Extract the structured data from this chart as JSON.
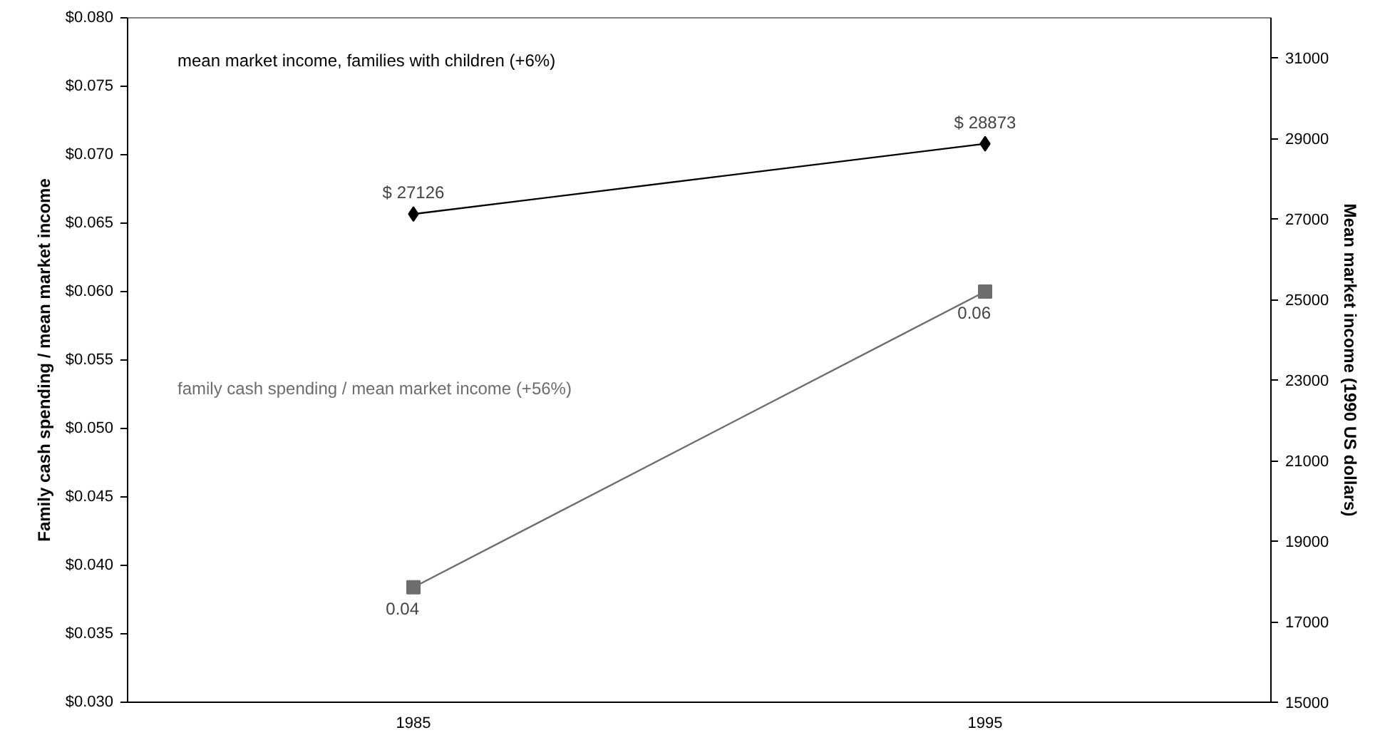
{
  "chart_data": {
    "type": "line",
    "categories": [
      "1985",
      "1995"
    ],
    "ylabel": "Family cash spending / mean market income",
    "y2label": "Mean market income (1990 US dollars)",
    "ylim": [
      0.03,
      0.08
    ],
    "yticks": [
      {
        "value": 0.03,
        "label": "$0.030"
      },
      {
        "value": 0.035,
        "label": "$0.035"
      },
      {
        "value": 0.04,
        "label": "$0.040"
      },
      {
        "value": 0.045,
        "label": "$0.045"
      },
      {
        "value": 0.05,
        "label": "$0.050"
      },
      {
        "value": 0.055,
        "label": "$0.055"
      },
      {
        "value": 0.06,
        "label": "$0.060"
      },
      {
        "value": 0.065,
        "label": "$0.065"
      },
      {
        "value": 0.07,
        "label": "$0.070"
      },
      {
        "value": 0.075,
        "label": "$0.075"
      },
      {
        "value": 0.08,
        "label": "$0.080"
      }
    ],
    "y2lim": [
      15000,
      32000
    ],
    "y2ticks": [
      15000,
      17000,
      19000,
      21000,
      23000,
      25000,
      27000,
      29000,
      31000
    ],
    "series": [
      {
        "name": "mean market income, families with children (+6%)",
        "color": "#000000",
        "axis": "y2",
        "marker": "diamond",
        "values": [
          27126,
          28873
        ],
        "value_labels": [
          "$ 27126",
          "$ 28873"
        ]
      },
      {
        "name": "family cash spending / mean market income (+56%)",
        "color": "#6d6d6d",
        "marker": "square",
        "values": [
          0.0384,
          0.06
        ],
        "value_labels": [
          "0.04",
          "0.06"
        ]
      }
    ],
    "grid": false
  }
}
